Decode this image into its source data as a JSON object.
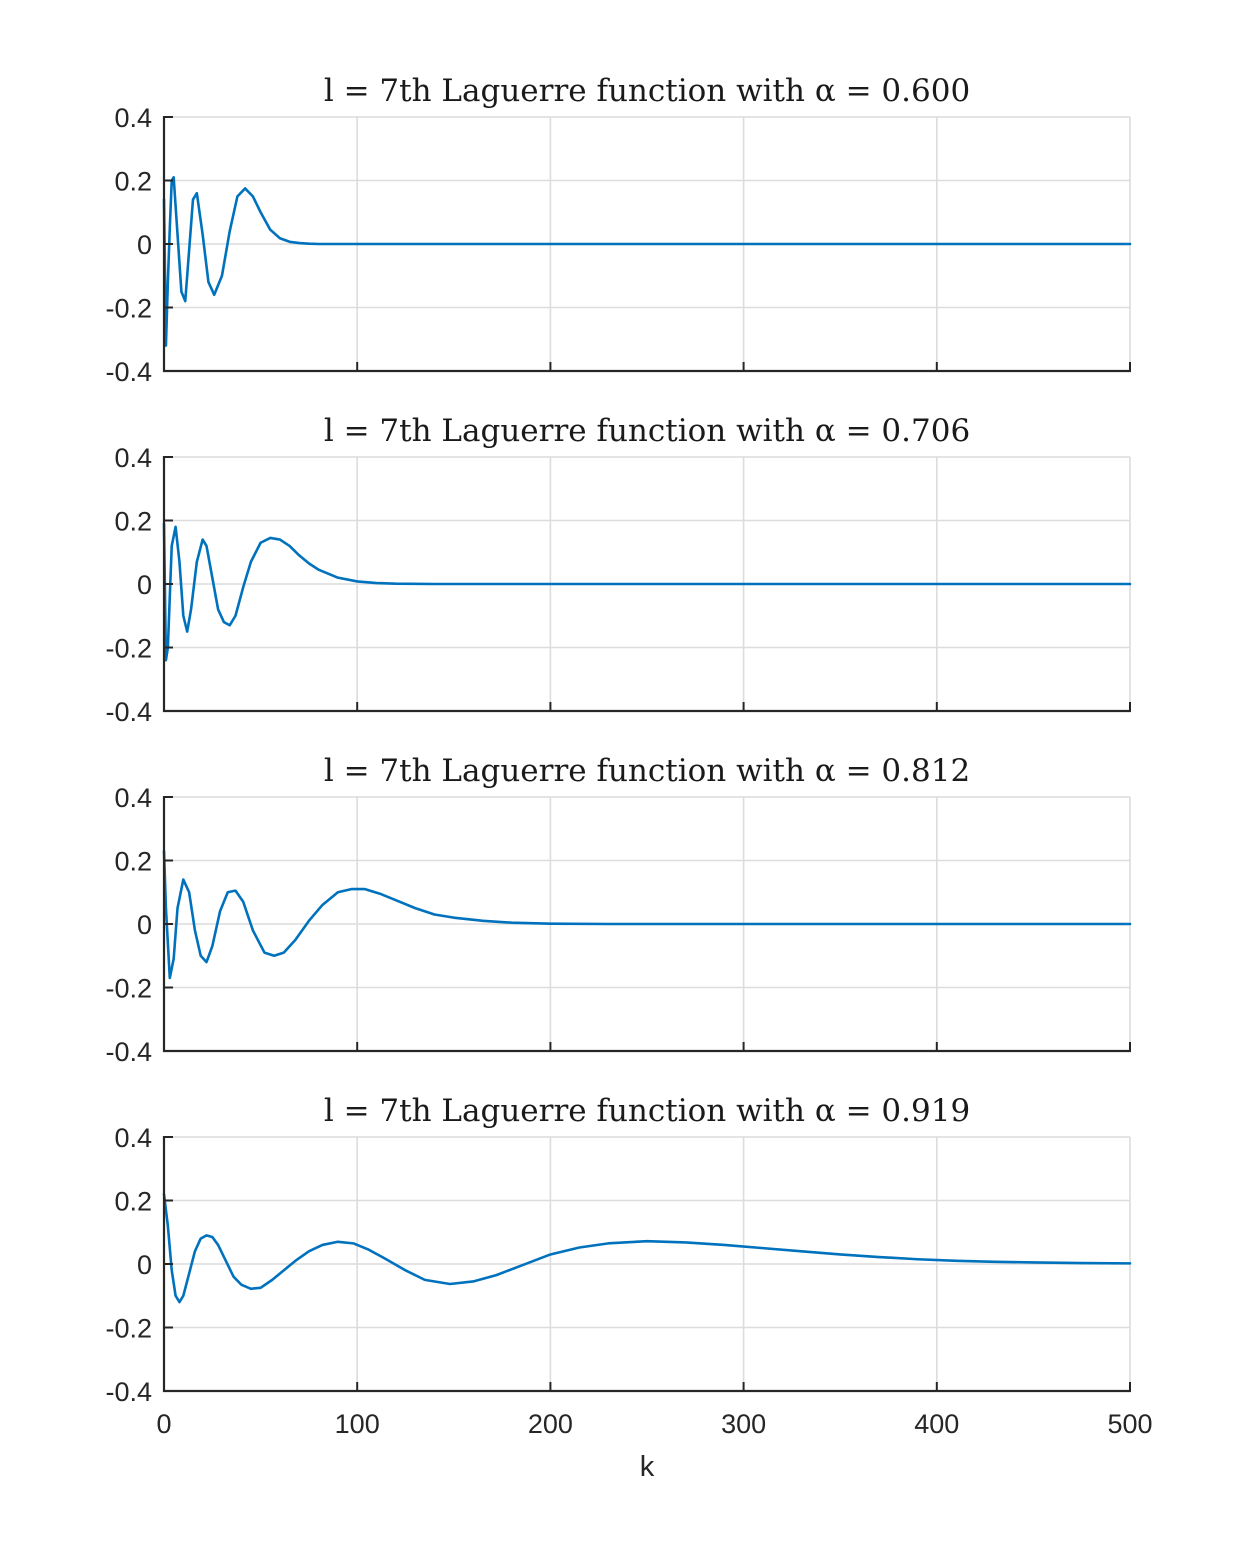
{
  "chart_data": [
    {
      "type": "line",
      "title": "l = 7th Laguerre function with α = 0.600",
      "xlim": [
        0,
        500
      ],
      "ylim": [
        -0.4,
        0.4
      ],
      "xticks": [
        0,
        100,
        200,
        300,
        400,
        500
      ],
      "yticks": [
        "-0.4",
        "-0.2",
        "0",
        "0.2",
        "0.4"
      ],
      "show_xtick_labels": false,
      "xlabel": "",
      "grid": true,
      "series": [
        {
          "color": "#0072BD",
          "x": [
            0,
            1,
            2,
            3,
            4,
            5,
            7,
            9,
            11,
            13,
            15,
            17,
            20,
            23,
            26,
            30,
            34,
            38,
            42,
            46,
            50,
            55,
            60,
            65,
            70,
            75,
            80,
            90,
            100,
            500
          ],
          "y": [
            0.14,
            -0.32,
            -0.12,
            0.05,
            0.2,
            0.21,
            0.03,
            -0.15,
            -0.18,
            -0.02,
            0.14,
            0.16,
            0.03,
            -0.12,
            -0.16,
            -0.1,
            0.04,
            0.15,
            0.175,
            0.15,
            0.1,
            0.045,
            0.018,
            0.007,
            0.003,
            0.001,
            0.0,
            0.0,
            0.0,
            0.0
          ]
        }
      ]
    },
    {
      "type": "line",
      "title": "l = 7th Laguerre function with α = 0.706",
      "xlim": [
        0,
        500
      ],
      "ylim": [
        -0.4,
        0.4
      ],
      "xticks": [
        0,
        100,
        200,
        300,
        400,
        500
      ],
      "yticks": [
        "-0.4",
        "-0.2",
        "0",
        "0.2",
        "0.4"
      ],
      "show_xtick_labels": false,
      "xlabel": "",
      "grid": true,
      "series": [
        {
          "color": "#0072BD",
          "x": [
            0,
            1,
            2,
            4,
            6,
            8,
            10,
            12,
            14,
            17,
            20,
            22,
            25,
            28,
            31,
            34,
            37,
            41,
            45,
            50,
            55,
            60,
            65,
            70,
            75,
            80,
            90,
            100,
            110,
            120,
            140,
            500
          ],
          "y": [
            0.19,
            -0.24,
            -0.2,
            0.12,
            0.18,
            0.07,
            -0.1,
            -0.15,
            -0.08,
            0.07,
            0.14,
            0.12,
            0.02,
            -0.08,
            -0.12,
            -0.13,
            -0.1,
            -0.01,
            0.07,
            0.13,
            0.145,
            0.14,
            0.12,
            0.09,
            0.065,
            0.045,
            0.02,
            0.008,
            0.003,
            0.001,
            0.0,
            0.0
          ]
        }
      ]
    },
    {
      "type": "line",
      "title": "l = 7th Laguerre function with α = 0.812",
      "xlim": [
        0,
        500
      ],
      "ylim": [
        -0.4,
        0.4
      ],
      "xticks": [
        0,
        100,
        200,
        300,
        400,
        500
      ],
      "yticks": [
        "-0.4",
        "-0.2",
        "0",
        "0.2",
        "0.4"
      ],
      "show_xtick_labels": false,
      "xlabel": "",
      "grid": true,
      "series": [
        {
          "color": "#0072BD",
          "x": [
            0,
            1,
            3,
            5,
            7,
            10,
            13,
            16,
            19,
            22,
            25,
            29,
            33,
            37,
            41,
            46,
            52,
            57,
            62,
            68,
            75,
            82,
            90,
            97,
            104,
            112,
            120,
            130,
            140,
            150,
            165,
            180,
            200,
            230,
            500
          ],
          "y": [
            0.23,
            0.05,
            -0.17,
            -0.11,
            0.05,
            0.14,
            0.1,
            -0.02,
            -0.1,
            -0.12,
            -0.07,
            0.04,
            0.1,
            0.105,
            0.07,
            -0.02,
            -0.09,
            -0.1,
            -0.09,
            -0.05,
            0.01,
            0.06,
            0.1,
            0.11,
            0.11,
            0.095,
            0.075,
            0.05,
            0.03,
            0.02,
            0.01,
            0.004,
            0.001,
            0.0,
            0.0
          ]
        }
      ]
    },
    {
      "type": "line",
      "title": "l = 7th Laguerre function with α = 0.919",
      "xlim": [
        0,
        500
      ],
      "ylim": [
        -0.4,
        0.4
      ],
      "xticks": [
        0,
        100,
        200,
        300,
        400,
        500
      ],
      "yticks": [
        "-0.4",
        "-0.2",
        "0",
        "0.2",
        "0.4"
      ],
      "xtick_labels": [
        "0",
        "100",
        "200",
        "300",
        "400",
        "500"
      ],
      "show_xtick_labels": true,
      "xlabel": "k",
      "grid": true,
      "series": [
        {
          "color": "#0072BD",
          "x": [
            0,
            2,
            4,
            6,
            8,
            10,
            13,
            16,
            19,
            22,
            25,
            28,
            32,
            36,
            40,
            45,
            50,
            56,
            62,
            68,
            75,
            82,
            90,
            98,
            106,
            115,
            125,
            135,
            148,
            160,
            172,
            185,
            200,
            215,
            230,
            250,
            270,
            290,
            310,
            330,
            350,
            370,
            390,
            410,
            430,
            450,
            475,
            500
          ],
          "y": [
            0.22,
            0.12,
            -0.02,
            -0.1,
            -0.12,
            -0.1,
            -0.03,
            0.04,
            0.08,
            0.09,
            0.085,
            0.06,
            0.01,
            -0.04,
            -0.065,
            -0.078,
            -0.075,
            -0.05,
            -0.02,
            0.01,
            0.04,
            0.06,
            0.07,
            0.065,
            0.045,
            0.015,
            -0.02,
            -0.05,
            -0.063,
            -0.055,
            -0.035,
            -0.005,
            0.03,
            0.052,
            0.065,
            0.072,
            0.068,
            0.06,
            0.05,
            0.04,
            0.03,
            0.022,
            0.015,
            0.01,
            0.007,
            0.005,
            0.003,
            0.002
          ]
        }
      ]
    }
  ]
}
